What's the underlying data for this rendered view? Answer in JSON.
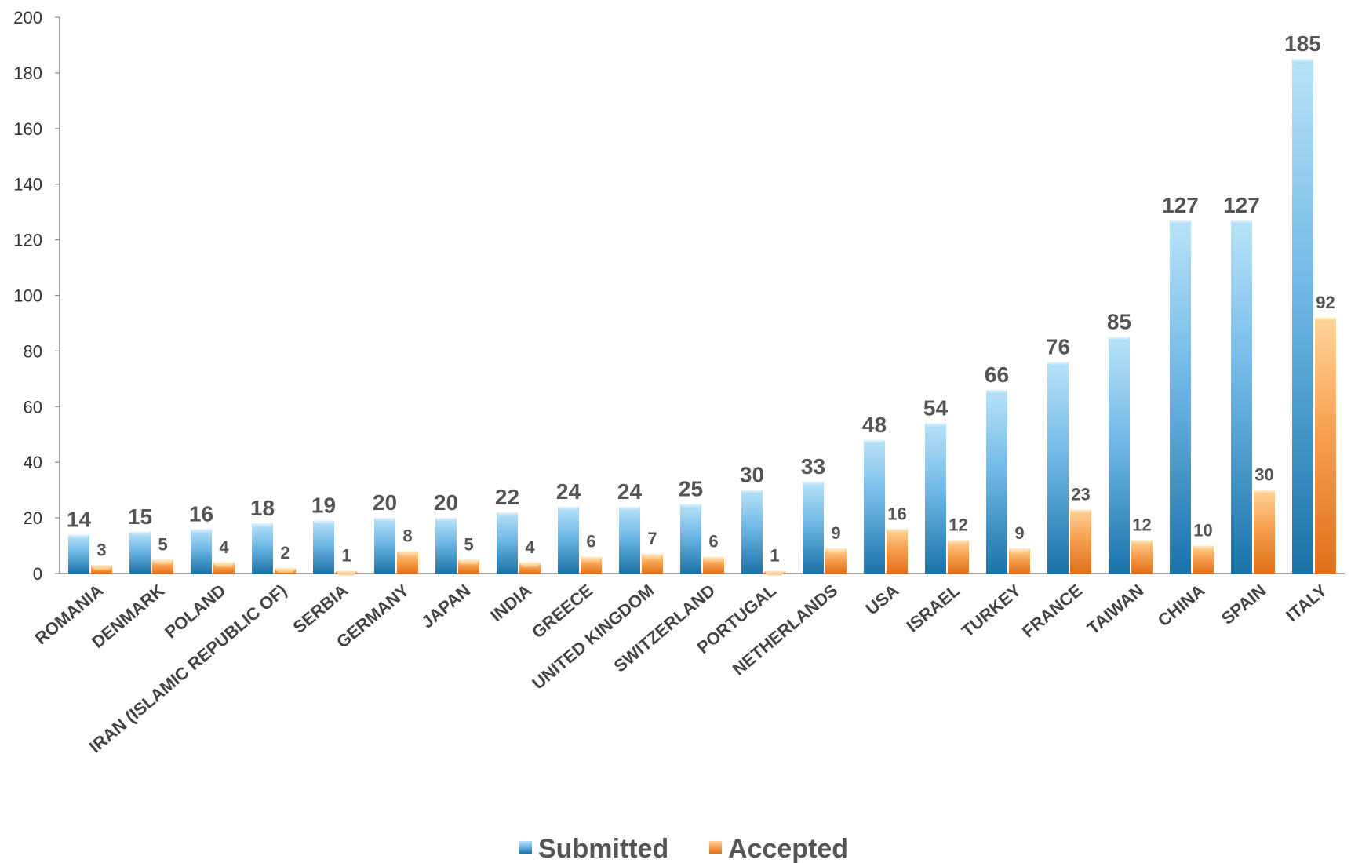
{
  "chart_data": {
    "type": "bar",
    "categories": [
      "ROMANIA",
      "DENMARK",
      "POLAND",
      "IRAN (ISLAMIC REPUBLIC OF)",
      "SERBIA",
      "GERMANY",
      "JAPAN",
      "INDIA",
      "GREECE",
      "UNITED KINGDOM",
      "SWITZERLAND",
      "PORTUGAL",
      "NETHERLANDS",
      "USA",
      "ISRAEL",
      "TURKEY",
      "FRANCE",
      "TAIWAN",
      "CHINA",
      "SPAIN",
      "ITALY"
    ],
    "series": [
      {
        "name": "Submitted",
        "values": [
          14,
          15,
          16,
          18,
          19,
          20,
          20,
          22,
          24,
          24,
          25,
          30,
          33,
          48,
          54,
          66,
          76,
          85,
          127,
          127,
          185
        ]
      },
      {
        "name": "Accepted",
        "values": [
          3,
          5,
          4,
          2,
          1,
          8,
          5,
          4,
          6,
          7,
          6,
          1,
          9,
          16,
          12,
          9,
          23,
          12,
          10,
          30,
          92
        ]
      }
    ],
    "ylim": [
      0,
      200
    ],
    "yticks": [
      0,
      20,
      40,
      60,
      80,
      100,
      120,
      140,
      160,
      180,
      200
    ],
    "grid": false,
    "legend": "bottom",
    "data_labels": true,
    "colors": {
      "submitted": "#2f8fc2",
      "accepted": "#f08a2c"
    }
  }
}
